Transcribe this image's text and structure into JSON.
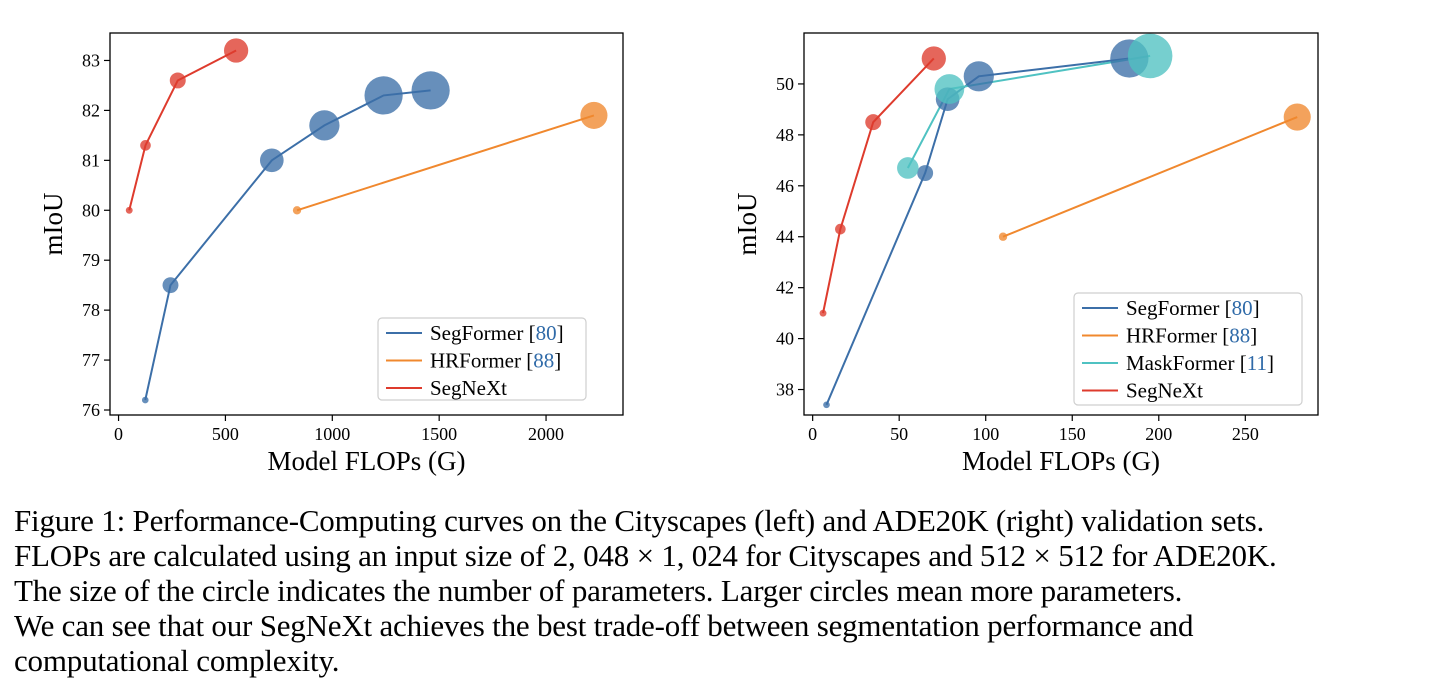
{
  "chart_data": [
    {
      "type": "scatter",
      "xlabel": "Model FLOPs (G)",
      "ylabel": "mIoU",
      "xlim": [
        -40,
        2360
      ],
      "ylim": [
        75.9,
        83.55
      ],
      "xticks": [
        0,
        500,
        1000,
        1500,
        2000
      ],
      "yticks": [
        76,
        77,
        78,
        79,
        80,
        81,
        82,
        83
      ],
      "legend_position": "lower-right",
      "series": [
        {
          "name": "SegFormer",
          "ref": "80",
          "color": "#3c6fa8",
          "x": [
            125,
            243,
            717,
            963,
            1240,
            1460
          ],
          "y": [
            76.2,
            78.5,
            81.0,
            81.7,
            82.3,
            82.4
          ],
          "size": [
            3.7,
            27.5,
            47.3,
            64.1,
            84.7,
            84.7
          ]
        },
        {
          "name": "HRFormer",
          "ref": "88",
          "color": "#f0882e",
          "x": [
            835,
            2224
          ],
          "y": [
            80.0,
            81.9
          ],
          "size": [
            8.1,
            56.2
          ]
        },
        {
          "name": "SegNeXt",
          "color": "#de3b2d",
          "x": [
            50,
            126,
            277,
            550
          ],
          "y": [
            80.0,
            81.3,
            82.6,
            83.2
          ],
          "size": [
            4.3,
            13.9,
            27.6,
            48.9
          ]
        }
      ]
    },
    {
      "type": "scatter",
      "xlabel": "Model FLOPs (G)",
      "ylabel": "mIoU",
      "xlim": [
        -5,
        292
      ],
      "ylim": [
        37.0,
        52.0
      ],
      "xticks": [
        0,
        50,
        100,
        150,
        200,
        250
      ],
      "yticks": [
        38,
        40,
        42,
        44,
        46,
        48,
        50
      ],
      "legend_position": "lower-right",
      "series": [
        {
          "name": "SegFormer",
          "ref": "80",
          "color": "#3c6fa8",
          "x": [
            8,
            65,
            78,
            96,
            183
          ],
          "y": [
            37.4,
            46.5,
            49.4,
            50.3,
            51.0
          ],
          "size": [
            3.8,
            27.5,
            47.3,
            64.1,
            84.7
          ]
        },
        {
          "name": "HRFormer",
          "ref": "88",
          "color": "#f0882e",
          "x": [
            110,
            280
          ],
          "y": [
            44.0,
            48.7
          ],
          "size": [
            8.1,
            56.2
          ]
        },
        {
          "name": "MaskFormer",
          "ref": "11",
          "color": "#4fc2c2",
          "x": [
            55,
            79,
            195
          ],
          "y": [
            46.7,
            49.8,
            51.1
          ],
          "size": [
            42,
            63,
            101
          ]
        },
        {
          "name": "SegNeXt",
          "color": "#de3b2d",
          "x": [
            6,
            16,
            35,
            70
          ],
          "y": [
            41.0,
            44.3,
            48.5,
            51.0
          ],
          "size": [
            4.3,
            13.9,
            27.6,
            48.9
          ]
        }
      ]
    }
  ],
  "caption": {
    "line1": "Figure 1: Performance-Computing curves on the Cityscapes (left) and ADE20K (right) validation sets.",
    "line2": "FLOPs are calculated using an input size of 2, 048 × 1, 024 for Cityscapes and 512 × 512 for ADE20K.",
    "line3": "The size of the circle indicates the number of parameters.  Larger circles mean more parameters.",
    "line4": "We can see that our SegNeXt achieves the best trade-off between segmentation performance and",
    "line5": "computational complexity."
  }
}
